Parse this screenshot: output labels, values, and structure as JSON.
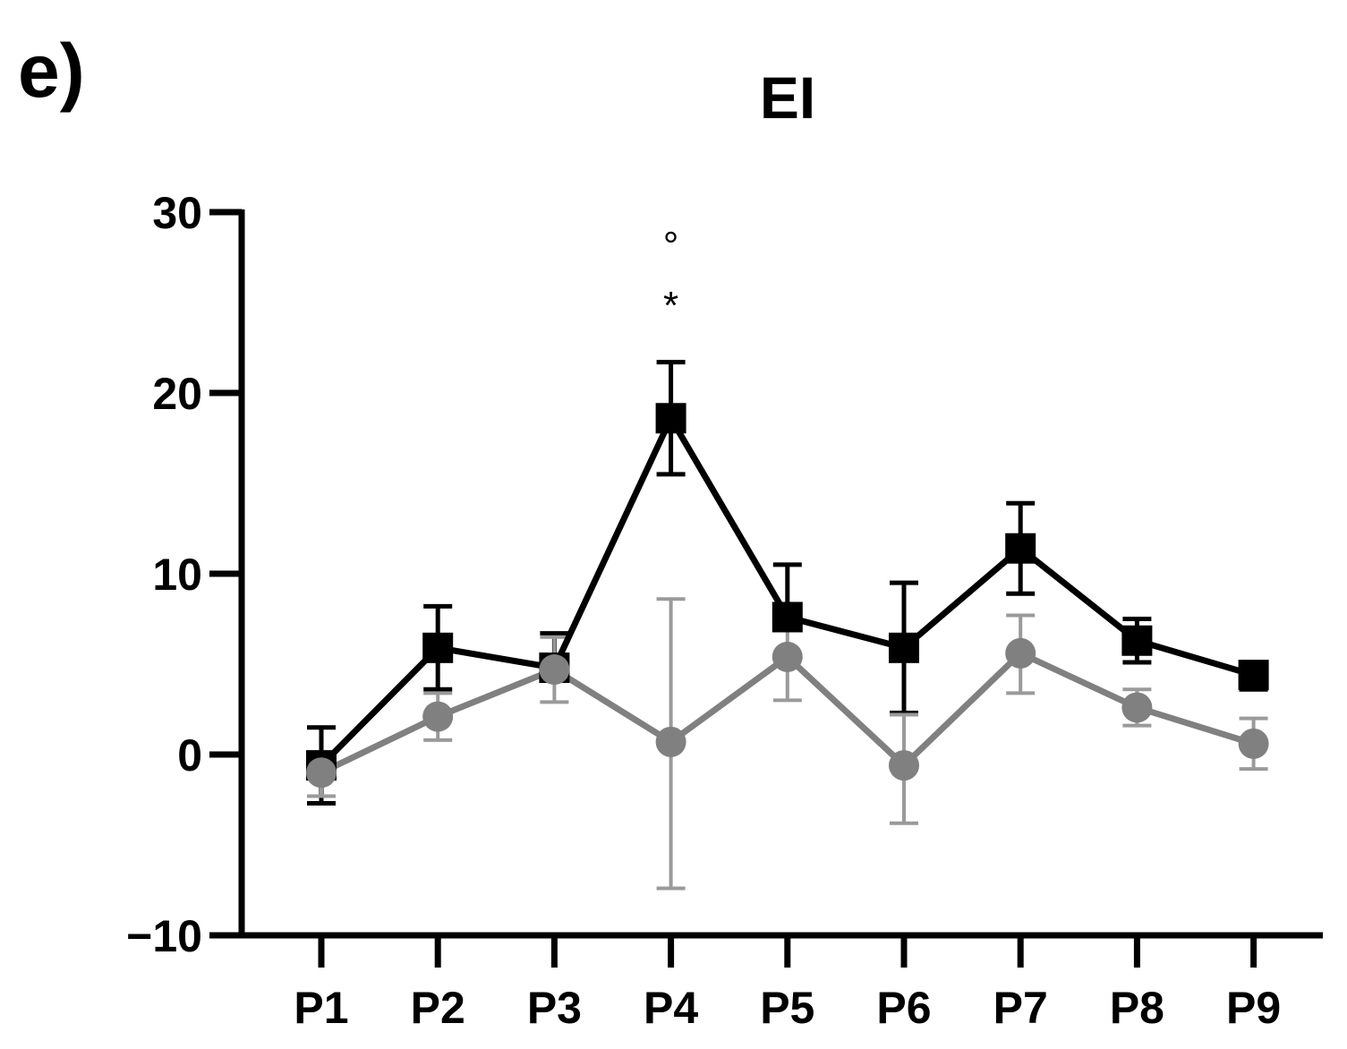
{
  "panel_label": "e)",
  "chart_data": {
    "type": "line",
    "title": "EI",
    "xlabel": "",
    "ylabel": "",
    "categories": [
      "P1",
      "P2",
      "P3",
      "P4",
      "P5",
      "P6",
      "P7",
      "P8",
      "P9"
    ],
    "ylim": [
      -10,
      30
    ],
    "yticks": [
      -10,
      0,
      10,
      20,
      30
    ],
    "ytick_labels": [
      "−10",
      "0",
      "10",
      "20",
      "30"
    ],
    "grid": false,
    "legend": "none",
    "series": [
      {
        "name": "black series",
        "marker": "square",
        "color": "#000000",
        "error_color": "#000000",
        "values": [
          -0.6,
          5.9,
          4.8,
          18.6,
          7.6,
          5.9,
          11.4,
          6.3,
          4.4
        ],
        "err_low": [
          2.1,
          2.3,
          0.4,
          3.1,
          0.4,
          3.6,
          2.5,
          1.2,
          0.8
        ],
        "err_high": [
          2.1,
          2.3,
          1.9,
          3.1,
          2.9,
          3.6,
          2.5,
          1.2,
          0.4
        ]
      },
      {
        "name": "grey series",
        "marker": "circle",
        "color": "#808080",
        "error_color": "#9a9a9a",
        "values": [
          -1.0,
          2.1,
          4.7,
          0.7,
          5.4,
          -0.6,
          5.6,
          2.6,
          0.6
        ],
        "err_low": [
          1.3,
          1.3,
          1.8,
          8.1,
          2.4,
          3.2,
          2.2,
          1.0,
          1.4
        ],
        "err_high": [
          0.4,
          1.3,
          1.8,
          7.9,
          2.4,
          2.8,
          2.1,
          1.0,
          1.4
        ]
      }
    ],
    "annotations": [
      {
        "category": "P4",
        "text": "*",
        "y": 24.8
      },
      {
        "category": "P4",
        "text": "°",
        "y": 28.1
      }
    ]
  }
}
